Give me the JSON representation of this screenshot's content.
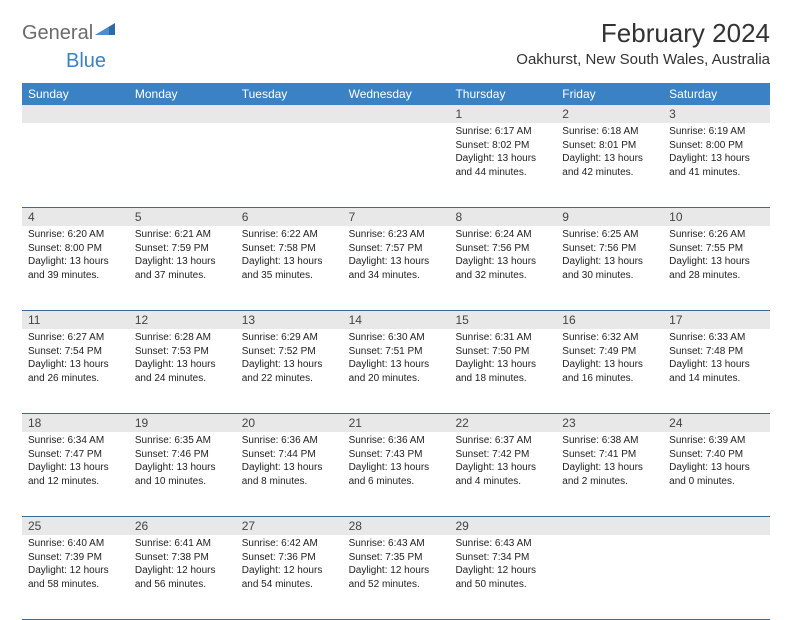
{
  "logo": {
    "text1": "General",
    "text2": "Blue"
  },
  "header": {
    "month_title": "February 2024",
    "location": "Oakhurst, New South Wales, Australia"
  },
  "colors": {
    "header_bar": "#3b82c4",
    "daynum_bg": "#e8e8e8",
    "week_border": "#3b6a95",
    "logo_gray": "#6b6b6b",
    "logo_blue": "#3b82c4"
  },
  "weekdays": [
    "Sunday",
    "Monday",
    "Tuesday",
    "Wednesday",
    "Thursday",
    "Friday",
    "Saturday"
  ],
  "weeks": [
    [
      {
        "n": "",
        "sunrise": "",
        "sunset": "",
        "daylight1": "",
        "daylight2": "",
        "empty": true
      },
      {
        "n": "",
        "sunrise": "",
        "sunset": "",
        "daylight1": "",
        "daylight2": "",
        "empty": true
      },
      {
        "n": "",
        "sunrise": "",
        "sunset": "",
        "daylight1": "",
        "daylight2": "",
        "empty": true
      },
      {
        "n": "",
        "sunrise": "",
        "sunset": "",
        "daylight1": "",
        "daylight2": "",
        "empty": true
      },
      {
        "n": "1",
        "sunrise": "Sunrise: 6:17 AM",
        "sunset": "Sunset: 8:02 PM",
        "daylight1": "Daylight: 13 hours",
        "daylight2": "and 44 minutes."
      },
      {
        "n": "2",
        "sunrise": "Sunrise: 6:18 AM",
        "sunset": "Sunset: 8:01 PM",
        "daylight1": "Daylight: 13 hours",
        "daylight2": "and 42 minutes."
      },
      {
        "n": "3",
        "sunrise": "Sunrise: 6:19 AM",
        "sunset": "Sunset: 8:00 PM",
        "daylight1": "Daylight: 13 hours",
        "daylight2": "and 41 minutes."
      }
    ],
    [
      {
        "n": "4",
        "sunrise": "Sunrise: 6:20 AM",
        "sunset": "Sunset: 8:00 PM",
        "daylight1": "Daylight: 13 hours",
        "daylight2": "and 39 minutes."
      },
      {
        "n": "5",
        "sunrise": "Sunrise: 6:21 AM",
        "sunset": "Sunset: 7:59 PM",
        "daylight1": "Daylight: 13 hours",
        "daylight2": "and 37 minutes."
      },
      {
        "n": "6",
        "sunrise": "Sunrise: 6:22 AM",
        "sunset": "Sunset: 7:58 PM",
        "daylight1": "Daylight: 13 hours",
        "daylight2": "and 35 minutes."
      },
      {
        "n": "7",
        "sunrise": "Sunrise: 6:23 AM",
        "sunset": "Sunset: 7:57 PM",
        "daylight1": "Daylight: 13 hours",
        "daylight2": "and 34 minutes."
      },
      {
        "n": "8",
        "sunrise": "Sunrise: 6:24 AM",
        "sunset": "Sunset: 7:56 PM",
        "daylight1": "Daylight: 13 hours",
        "daylight2": "and 32 minutes."
      },
      {
        "n": "9",
        "sunrise": "Sunrise: 6:25 AM",
        "sunset": "Sunset: 7:56 PM",
        "daylight1": "Daylight: 13 hours",
        "daylight2": "and 30 minutes."
      },
      {
        "n": "10",
        "sunrise": "Sunrise: 6:26 AM",
        "sunset": "Sunset: 7:55 PM",
        "daylight1": "Daylight: 13 hours",
        "daylight2": "and 28 minutes."
      }
    ],
    [
      {
        "n": "11",
        "sunrise": "Sunrise: 6:27 AM",
        "sunset": "Sunset: 7:54 PM",
        "daylight1": "Daylight: 13 hours",
        "daylight2": "and 26 minutes."
      },
      {
        "n": "12",
        "sunrise": "Sunrise: 6:28 AM",
        "sunset": "Sunset: 7:53 PM",
        "daylight1": "Daylight: 13 hours",
        "daylight2": "and 24 minutes."
      },
      {
        "n": "13",
        "sunrise": "Sunrise: 6:29 AM",
        "sunset": "Sunset: 7:52 PM",
        "daylight1": "Daylight: 13 hours",
        "daylight2": "and 22 minutes."
      },
      {
        "n": "14",
        "sunrise": "Sunrise: 6:30 AM",
        "sunset": "Sunset: 7:51 PM",
        "daylight1": "Daylight: 13 hours",
        "daylight2": "and 20 minutes."
      },
      {
        "n": "15",
        "sunrise": "Sunrise: 6:31 AM",
        "sunset": "Sunset: 7:50 PM",
        "daylight1": "Daylight: 13 hours",
        "daylight2": "and 18 minutes."
      },
      {
        "n": "16",
        "sunrise": "Sunrise: 6:32 AM",
        "sunset": "Sunset: 7:49 PM",
        "daylight1": "Daylight: 13 hours",
        "daylight2": "and 16 minutes."
      },
      {
        "n": "17",
        "sunrise": "Sunrise: 6:33 AM",
        "sunset": "Sunset: 7:48 PM",
        "daylight1": "Daylight: 13 hours",
        "daylight2": "and 14 minutes."
      }
    ],
    [
      {
        "n": "18",
        "sunrise": "Sunrise: 6:34 AM",
        "sunset": "Sunset: 7:47 PM",
        "daylight1": "Daylight: 13 hours",
        "daylight2": "and 12 minutes."
      },
      {
        "n": "19",
        "sunrise": "Sunrise: 6:35 AM",
        "sunset": "Sunset: 7:46 PM",
        "daylight1": "Daylight: 13 hours",
        "daylight2": "and 10 minutes."
      },
      {
        "n": "20",
        "sunrise": "Sunrise: 6:36 AM",
        "sunset": "Sunset: 7:44 PM",
        "daylight1": "Daylight: 13 hours",
        "daylight2": "and 8 minutes."
      },
      {
        "n": "21",
        "sunrise": "Sunrise: 6:36 AM",
        "sunset": "Sunset: 7:43 PM",
        "daylight1": "Daylight: 13 hours",
        "daylight2": "and 6 minutes."
      },
      {
        "n": "22",
        "sunrise": "Sunrise: 6:37 AM",
        "sunset": "Sunset: 7:42 PM",
        "daylight1": "Daylight: 13 hours",
        "daylight2": "and 4 minutes."
      },
      {
        "n": "23",
        "sunrise": "Sunrise: 6:38 AM",
        "sunset": "Sunset: 7:41 PM",
        "daylight1": "Daylight: 13 hours",
        "daylight2": "and 2 minutes."
      },
      {
        "n": "24",
        "sunrise": "Sunrise: 6:39 AM",
        "sunset": "Sunset: 7:40 PM",
        "daylight1": "Daylight: 13 hours",
        "daylight2": "and 0 minutes."
      }
    ],
    [
      {
        "n": "25",
        "sunrise": "Sunrise: 6:40 AM",
        "sunset": "Sunset: 7:39 PM",
        "daylight1": "Daylight: 12 hours",
        "daylight2": "and 58 minutes."
      },
      {
        "n": "26",
        "sunrise": "Sunrise: 6:41 AM",
        "sunset": "Sunset: 7:38 PM",
        "daylight1": "Daylight: 12 hours",
        "daylight2": "and 56 minutes."
      },
      {
        "n": "27",
        "sunrise": "Sunrise: 6:42 AM",
        "sunset": "Sunset: 7:36 PM",
        "daylight1": "Daylight: 12 hours",
        "daylight2": "and 54 minutes."
      },
      {
        "n": "28",
        "sunrise": "Sunrise: 6:43 AM",
        "sunset": "Sunset: 7:35 PM",
        "daylight1": "Daylight: 12 hours",
        "daylight2": "and 52 minutes."
      },
      {
        "n": "29",
        "sunrise": "Sunrise: 6:43 AM",
        "sunset": "Sunset: 7:34 PM",
        "daylight1": "Daylight: 12 hours",
        "daylight2": "and 50 minutes."
      },
      {
        "n": "",
        "sunrise": "",
        "sunset": "",
        "daylight1": "",
        "daylight2": "",
        "empty": true
      },
      {
        "n": "",
        "sunrise": "",
        "sunset": "",
        "daylight1": "",
        "daylight2": "",
        "empty": true
      }
    ]
  ]
}
